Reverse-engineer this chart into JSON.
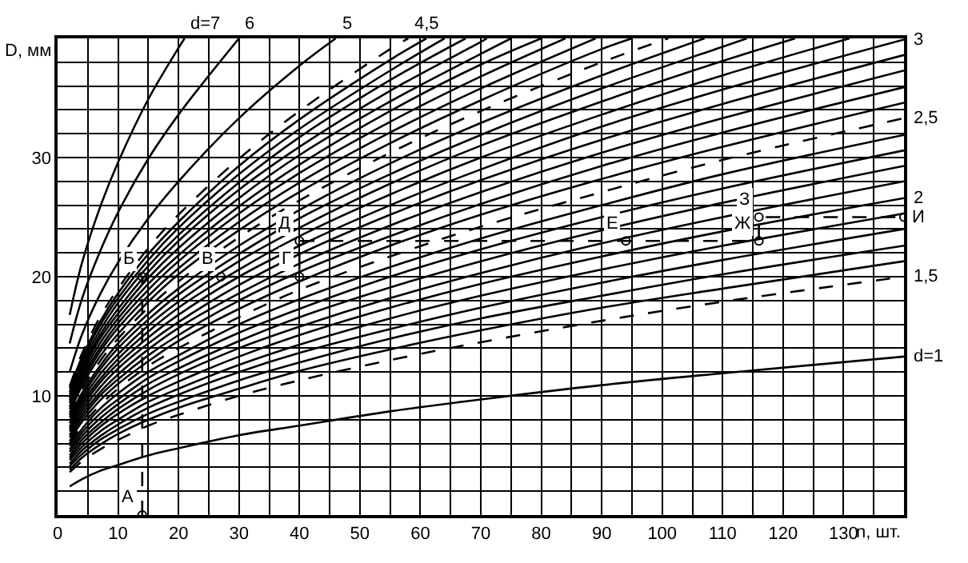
{
  "chart_data": {
    "type": "line",
    "xlabel": "n, шт.",
    "ylabel": "D, мм",
    "color": "#000000",
    "marker": "none",
    "line_style": "solid",
    "grid": true,
    "xlim": [
      0,
      140
    ],
    "ylim": [
      0,
      40
    ],
    "xticks": [
      0,
      {
        "value": 5,
        "label": null
      },
      10,
      {
        "value": 15,
        "label": null
      },
      20,
      {
        "value": 25,
        "label": null
      },
      30,
      {
        "value": 35,
        "label": null
      },
      40,
      {
        "value": 45,
        "label": null
      },
      50,
      {
        "value": 55,
        "label": null
      },
      60,
      {
        "value": 65,
        "label": null
      },
      70,
      {
        "value": 75,
        "label": null
      },
      80,
      {
        "value": 85,
        "label": null
      },
      90,
      {
        "value": 95,
        "label": null
      },
      100,
      {
        "value": 105,
        "label": null
      },
      110,
      {
        "value": 115,
        "label": null
      },
      120,
      {
        "value": 125,
        "label": null
      },
      130,
      {
        "value": 135,
        "label": null
      }
    ],
    "yticks": [
      {
        "value": 0,
        "label": null
      },
      {
        "value": 2,
        "label": null
      },
      {
        "value": 4,
        "label": null
      },
      {
        "value": 6,
        "label": null
      },
      {
        "value": 8,
        "label": null
      },
      10,
      {
        "value": 12,
        "label": null
      },
      {
        "value": 14,
        "label": null
      },
      {
        "value": 16,
        "label": null
      },
      {
        "value": 18,
        "label": null
      },
      20,
      {
        "value": 22,
        "label": null
      },
      {
        "value": 24,
        "label": null
      },
      {
        "value": 26,
        "label": null
      },
      {
        "value": 28,
        "label": null
      },
      30,
      {
        "value": 32,
        "label": null
      },
      {
        "value": 34,
        "label": null
      },
      {
        "value": 36,
        "label": null
      },
      {
        "value": 38,
        "label": null
      }
    ],
    "x": [
      2,
      4,
      7,
      10,
      15,
      20,
      30,
      40,
      55,
      70,
      90,
      110,
      140
    ],
    "series": [
      {
        "name": "d=1",
        "values": [
          2.4,
          3.0,
          3.7,
          4.2,
          5.0,
          5.6,
          6.7,
          7.5,
          8.7,
          9.7,
          10.9,
          11.9,
          13.3
        ]
      },
      {
        "name": "1,5",
        "line_style": "dashed",
        "values": [
          3.6,
          4.5,
          5.5,
          6.3,
          7.5,
          8.4,
          10.0,
          11.3,
          13.0,
          14.5,
          16.3,
          17.9,
          20.0
        ]
      },
      {
        "values": [
          3.8,
          4.8,
          5.9,
          6.8,
          8.0,
          9.0,
          10.6,
          12.1,
          13.9,
          15.5,
          17.4,
          19.0,
          21.3
        ]
      },
      {
        "values": [
          4.1,
          5.1,
          6.3,
          7.2,
          8.5,
          9.5,
          11.3,
          12.8,
          14.8,
          16.5,
          18.4,
          20.2,
          22.6
        ]
      },
      {
        "values": [
          4.3,
          5.4,
          6.6,
          7.6,
          9.0,
          10.1,
          12.0,
          13.6,
          15.6,
          17.4,
          19.5,
          21.4,
          24.0
        ]
      },
      {
        "values": [
          4.6,
          5.7,
          7.0,
          8.0,
          9.5,
          10.6,
          12.6,
          14.3,
          16.5,
          18.4,
          20.6,
          22.6,
          25.3
        ]
      },
      {
        "name": "2",
        "values": [
          4.8,
          6.0,
          7.4,
          8.5,
          10.0,
          11.2,
          13.3,
          15.1,
          17.4,
          19.4,
          21.7,
          23.8,
          26.6
        ]
      },
      {
        "values": [
          5.0,
          6.3,
          7.7,
          8.9,
          10.5,
          11.8,
          14.0,
          15.8,
          18.2,
          20.3,
          22.8,
          25.0,
          28.0
        ]
      },
      {
        "values": [
          5.3,
          6.6,
          8.1,
          9.3,
          11.0,
          12.3,
          14.6,
          16.6,
          19.1,
          21.3,
          23.9,
          26.2,
          29.3
        ]
      },
      {
        "values": [
          5.5,
          6.9,
          8.5,
          9.7,
          11.5,
          12.9,
          15.3,
          17.3,
          20.0,
          22.3,
          25.0,
          27.4,
          30.6
        ]
      },
      {
        "values": [
          5.8,
          7.2,
          8.9,
          10.2,
          12.0,
          13.4,
          16.0,
          18.1,
          20.8,
          23.2,
          26.0,
          28.6,
          31.9
        ]
      },
      {
        "name": "2,5",
        "line_style": "dashed",
        "values": [
          6.0,
          7.5,
          9.2,
          10.6,
          12.5,
          14.0,
          16.6,
          18.9,
          21.7,
          24.2,
          27.1,
          29.8,
          33.3
        ]
      },
      {
        "values": [
          6.2,
          7.8,
          9.6,
          11.0,
          12.9,
          14.6,
          17.3,
          19.6,
          22.6,
          25.2,
          28.2,
          30.9,
          34.6
        ]
      },
      {
        "values": [
          6.5,
          8.1,
          10.0,
          11.4,
          13.4,
          15.1,
          18.0,
          20.4,
          23.4,
          26.1,
          29.3,
          32.1,
          35.9
        ]
      },
      {
        "values": [
          6.7,
          8.4,
          10.3,
          11.8,
          13.9,
          15.7,
          18.6,
          21.1,
          24.3,
          27.1,
          30.4,
          33.3,
          37.3
        ]
      },
      {
        "values": [
          7.0,
          8.7,
          10.7,
          12.3,
          14.4,
          16.2,
          19.3,
          21.9,
          25.2,
          28.1,
          31.5,
          34.5,
          38.6
        ]
      },
      {
        "name": "3",
        "values": [
          7.2,
          9.0,
          11.1,
          12.7,
          14.9,
          16.8,
          20.0,
          22.6,
          26.0,
          29.0,
          32.6,
          35.7,
          39.9
        ]
      },
      {
        "x": [
          2,
          4,
          7,
          10,
          15,
          20,
          30,
          40,
          55,
          70,
          90,
          110,
          131
        ],
        "values": [
          7.4,
          9.3,
          11.4,
          13.1,
          15.4,
          17.4,
          20.6,
          23.4,
          26.9,
          30.0,
          33.6,
          36.9,
          40
        ]
      },
      {
        "x": [
          2,
          4,
          7,
          10,
          15,
          20,
          30,
          40,
          55,
          70,
          90,
          110,
          122
        ],
        "values": [
          7.7,
          9.6,
          11.8,
          13.5,
          15.9,
          17.9,
          21.3,
          24.1,
          27.8,
          31.0,
          34.7,
          38.1,
          40
        ]
      },
      {
        "x": [
          2,
          4,
          7,
          10,
          15,
          20,
          30,
          40,
          55,
          70,
          90,
          110,
          114
        ],
        "values": [
          7.9,
          9.9,
          12.2,
          14.0,
          16.4,
          18.5,
          21.9,
          24.9,
          28.6,
          31.9,
          35.8,
          39.3,
          40
        ]
      },
      {
        "x": [
          2,
          4,
          7,
          10,
          15,
          20,
          30,
          40,
          55,
          70,
          90,
          107
        ],
        "values": [
          8.2,
          10.2,
          12.5,
          14.4,
          16.9,
          19.0,
          22.6,
          25.6,
          29.5,
          32.9,
          36.9,
          40
        ]
      },
      {
        "x": [
          2,
          4,
          7,
          10,
          15,
          20,
          30,
          40,
          55,
          70,
          90,
          101
        ],
        "line_style": "dashed",
        "values": [
          8.4,
          10.5,
          12.9,
          14.8,
          17.4,
          19.6,
          23.3,
          26.4,
          30.4,
          33.9,
          38.0,
          40
        ]
      },
      {
        "x": [
          2,
          4,
          7,
          10,
          15,
          20,
          30,
          40,
          55,
          70,
          90,
          95
        ],
        "values": [
          8.6,
          10.8,
          13.3,
          15.2,
          17.9,
          20.2,
          23.9,
          27.1,
          31.2,
          34.8,
          39.1,
          40
        ]
      },
      {
        "x": [
          2,
          4,
          7,
          10,
          15,
          20,
          30,
          40,
          55,
          70,
          89
        ],
        "values": [
          8.9,
          11.1,
          13.7,
          15.7,
          18.4,
          20.7,
          24.6,
          27.9,
          32.1,
          35.8,
          40
        ]
      },
      {
        "x": [
          2,
          4,
          7,
          10,
          15,
          20,
          30,
          40,
          55,
          70,
          84
        ],
        "values": [
          9.1,
          11.4,
          14.0,
          16.1,
          18.9,
          21.3,
          25.3,
          28.7,
          33.0,
          36.8,
          40
        ]
      },
      {
        "x": [
          2,
          4,
          7,
          10,
          15,
          20,
          30,
          40,
          55,
          70,
          80
        ],
        "values": [
          9.4,
          11.7,
          14.4,
          16.5,
          19.4,
          21.8,
          25.9,
          29.4,
          33.9,
          37.8,
          40
        ]
      },
      {
        "x": [
          2,
          4,
          7,
          10,
          15,
          20,
          30,
          40,
          55,
          70,
          75
        ],
        "values": [
          9.6,
          12.0,
          14.8,
          16.9,
          19.9,
          22.4,
          26.6,
          30.2,
          34.7,
          38.7,
          40
        ]
      },
      {
        "x": [
          2,
          4,
          7,
          10,
          15,
          20,
          30,
          40,
          55,
          70,
          71
        ],
        "values": [
          9.8,
          12.3,
          15.1,
          17.3,
          20.4,
          23.0,
          27.3,
          30.9,
          35.6,
          39.7,
          40
        ]
      },
      {
        "x": [
          2,
          4,
          7,
          10,
          15,
          20,
          30,
          40,
          55,
          67.5
        ],
        "values": [
          10.1,
          12.6,
          15.5,
          17.8,
          20.9,
          23.5,
          27.9,
          31.7,
          36.5,
          40
        ]
      },
      {
        "x": [
          2,
          4,
          7,
          10,
          15,
          20,
          30,
          40,
          55,
          64
        ],
        "values": [
          10.3,
          12.9,
          15.9,
          18.2,
          21.4,
          24.1,
          28.6,
          32.4,
          37.3,
          40
        ]
      },
      {
        "x": [
          2,
          4,
          7,
          10,
          15,
          20,
          30,
          40,
          55,
          61
        ],
        "values": [
          10.6,
          13.2,
          16.2,
          18.6,
          21.9,
          24.6,
          29.3,
          33.2,
          38.2,
          40
        ]
      },
      {
        "name": "4,5",
        "line_style": "dashed",
        "x": [
          2,
          4,
          7,
          10,
          15,
          20,
          30,
          40,
          55,
          58
        ],
        "values": [
          10.8,
          13.5,
          16.6,
          19.0,
          22.4,
          25.2,
          29.9,
          33.9,
          39.1,
          40
        ]
      },
      {
        "name": "5",
        "x": [
          2,
          4,
          7,
          10,
          15,
          20,
          30,
          40,
          46
        ],
        "values": [
          12.0,
          15.1,
          18.5,
          21.2,
          24.9,
          28.0,
          33.3,
          37.7,
          40
        ]
      },
      {
        "name": "6",
        "x": [
          2,
          4,
          7,
          10,
          15,
          20,
          30
        ],
        "values": [
          14.4,
          18.1,
          22.1,
          25.4,
          29.9,
          33.6,
          40
        ]
      },
      {
        "name": "d=7",
        "x": [
          2,
          4,
          7,
          10,
          15,
          20,
          21
        ],
        "values": [
          16.8,
          21.1,
          25.8,
          29.6,
          34.9,
          39.2,
          40
        ]
      },
      {
        "line_style": "dashed",
        "marker": "circle",
        "x": [
          14,
          14,
          27,
          40,
          40,
          94,
          116,
          116,
          140
        ],
        "values": [
          0,
          20,
          20,
          20,
          23,
          23,
          23,
          25,
          25
        ]
      }
    ],
    "annotations": [
      {
        "text": "А",
        "x": 14,
        "y": 0
      },
      {
        "text": "Б",
        "x": 14,
        "y": 20
      },
      {
        "text": "В",
        "x": 27,
        "y": 20
      },
      {
        "text": "Г",
        "x": 40,
        "y": 20
      },
      {
        "text": "Д",
        "x": 40,
        "y": 23
      },
      {
        "text": "Е",
        "x": 94,
        "y": 23
      },
      {
        "text": "Ж",
        "x": 116,
        "y": 23
      },
      {
        "text": "З",
        "x": 116,
        "y": 25
      },
      {
        "text": "И",
        "x": 140,
        "y": 25
      }
    ]
  }
}
